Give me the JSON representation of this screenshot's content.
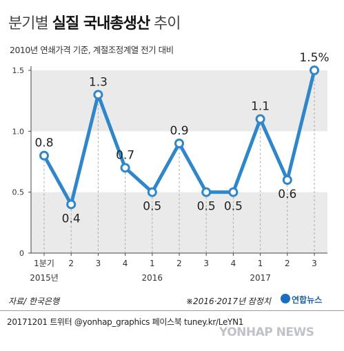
{
  "title": {
    "part1": "분기별 ",
    "part2": "실질 국내총생산",
    "part3": " 추이"
  },
  "subtitle": "2010년 연쇄가격 기준, 계절조정계열 전기 대비",
  "footer": {
    "source": "자료/ 한국은행",
    "note": "※2016·2017년 잠정치",
    "brand": "연합뉴스",
    "credit": "20171201   트위터 @yonhap_graphics  페이스북 tuney.kr/LeYN1",
    "watermark": "YONHAP NEWS"
  },
  "colors": {
    "line": "#2f86c8",
    "band": "#eaeaea",
    "axis": "#444444"
  },
  "chart_data": {
    "type": "line",
    "ylim": [
      0,
      1.5
    ],
    "yticks": [
      "0",
      "0.5",
      "1.0",
      "1.5"
    ],
    "categories": [
      "1분기",
      "2",
      "3",
      "4",
      "1",
      "2",
      "3",
      "4",
      "1",
      "2",
      "3"
    ],
    "year_labels": [
      {
        "label": "2015년",
        "under": 0
      },
      {
        "label": "2016",
        "under": 4
      },
      {
        "label": "2017",
        "under": 8
      }
    ],
    "values": [
      0.8,
      0.4,
      1.3,
      0.7,
      0.5,
      0.9,
      0.5,
      0.5,
      1.1,
      0.6,
      1.5
    ],
    "data_labels": [
      "0.8",
      "0.4",
      "1.3",
      "0.7",
      "0.5",
      "0.9",
      "0.5",
      "0.5",
      "1.1",
      "0.6",
      "1.5%"
    ],
    "label_side": [
      "above",
      "below",
      "above",
      "above",
      "below",
      "above",
      "below",
      "below",
      "above",
      "below",
      "above"
    ],
    "grid_bands": true,
    "legend": "none"
  }
}
